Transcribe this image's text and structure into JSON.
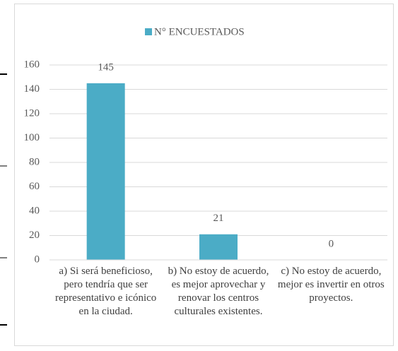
{
  "chart_data": {
    "type": "bar",
    "series": [
      {
        "name": "N° ENCUESTADOS",
        "color": "#4bacc6",
        "values": [
          145,
          21,
          0
        ]
      }
    ],
    "categories": [
      "a) Si será beneficioso, pero tendría que ser representativo e icónico en la ciudad.",
      "b) No estoy de acuerdo, es mejor aprovechar y renovar los centros culturales existentes.",
      "c) No estoy de acuerdo, mejor es invertir en otros proyectos."
    ],
    "ylim": [
      0,
      160
    ],
    "yticks": [
      0,
      20,
      40,
      60,
      80,
      100,
      120,
      140,
      160
    ],
    "grid": true,
    "legend": "top"
  }
}
